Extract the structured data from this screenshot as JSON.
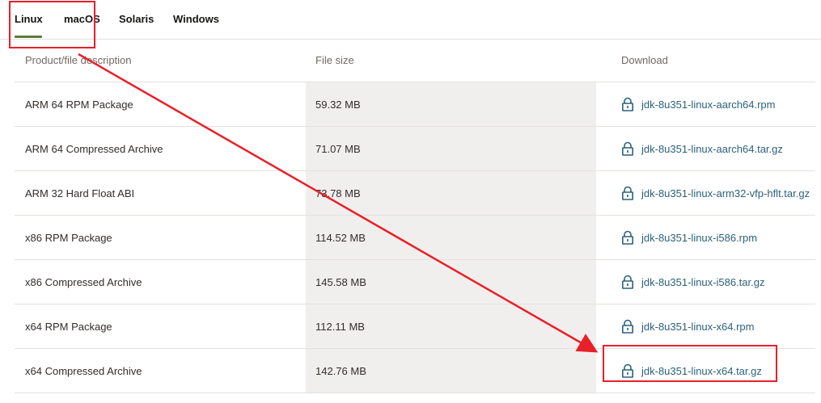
{
  "tabs": [
    {
      "label": "Linux",
      "active": true
    },
    {
      "label": "macOS",
      "active": false
    },
    {
      "label": "Solaris",
      "active": false
    },
    {
      "label": "Windows",
      "active": false
    }
  ],
  "table": {
    "headers": {
      "description": "Product/file description",
      "size": "File size",
      "download": "Download"
    },
    "rows": [
      {
        "description": "ARM 64 RPM Package",
        "size": "59.32 MB",
        "file": "jdk-8u351-linux-aarch64.rpm"
      },
      {
        "description": "ARM 64 Compressed Archive",
        "size": "71.07 MB",
        "file": "jdk-8u351-linux-aarch64.tar.gz"
      },
      {
        "description": "ARM 32 Hard Float ABI",
        "size": "73.78 MB",
        "file": "jdk-8u351-linux-arm32-vfp-hflt.tar.gz"
      },
      {
        "description": "x86 RPM Package",
        "size": "114.52 MB",
        "file": "jdk-8u351-linux-i586.rpm"
      },
      {
        "description": "x86 Compressed Archive",
        "size": "145.58 MB",
        "file": "jdk-8u351-linux-i586.tar.gz"
      },
      {
        "description": "x64 RPM Package",
        "size": "112.11 MB",
        "file": "jdk-8u351-linux-x64.rpm"
      },
      {
        "description": "x64 Compressed Archive",
        "size": "142.76 MB",
        "file": "jdk-8u351-linux-x64.tar.gz"
      }
    ]
  },
  "icons": {
    "download": "lock-icon"
  },
  "colors": {
    "link": "#2b6179",
    "active_tab_underline": "#5b7a3a",
    "size_column_bg": "#f1efed",
    "annotation": "#e8202a"
  }
}
